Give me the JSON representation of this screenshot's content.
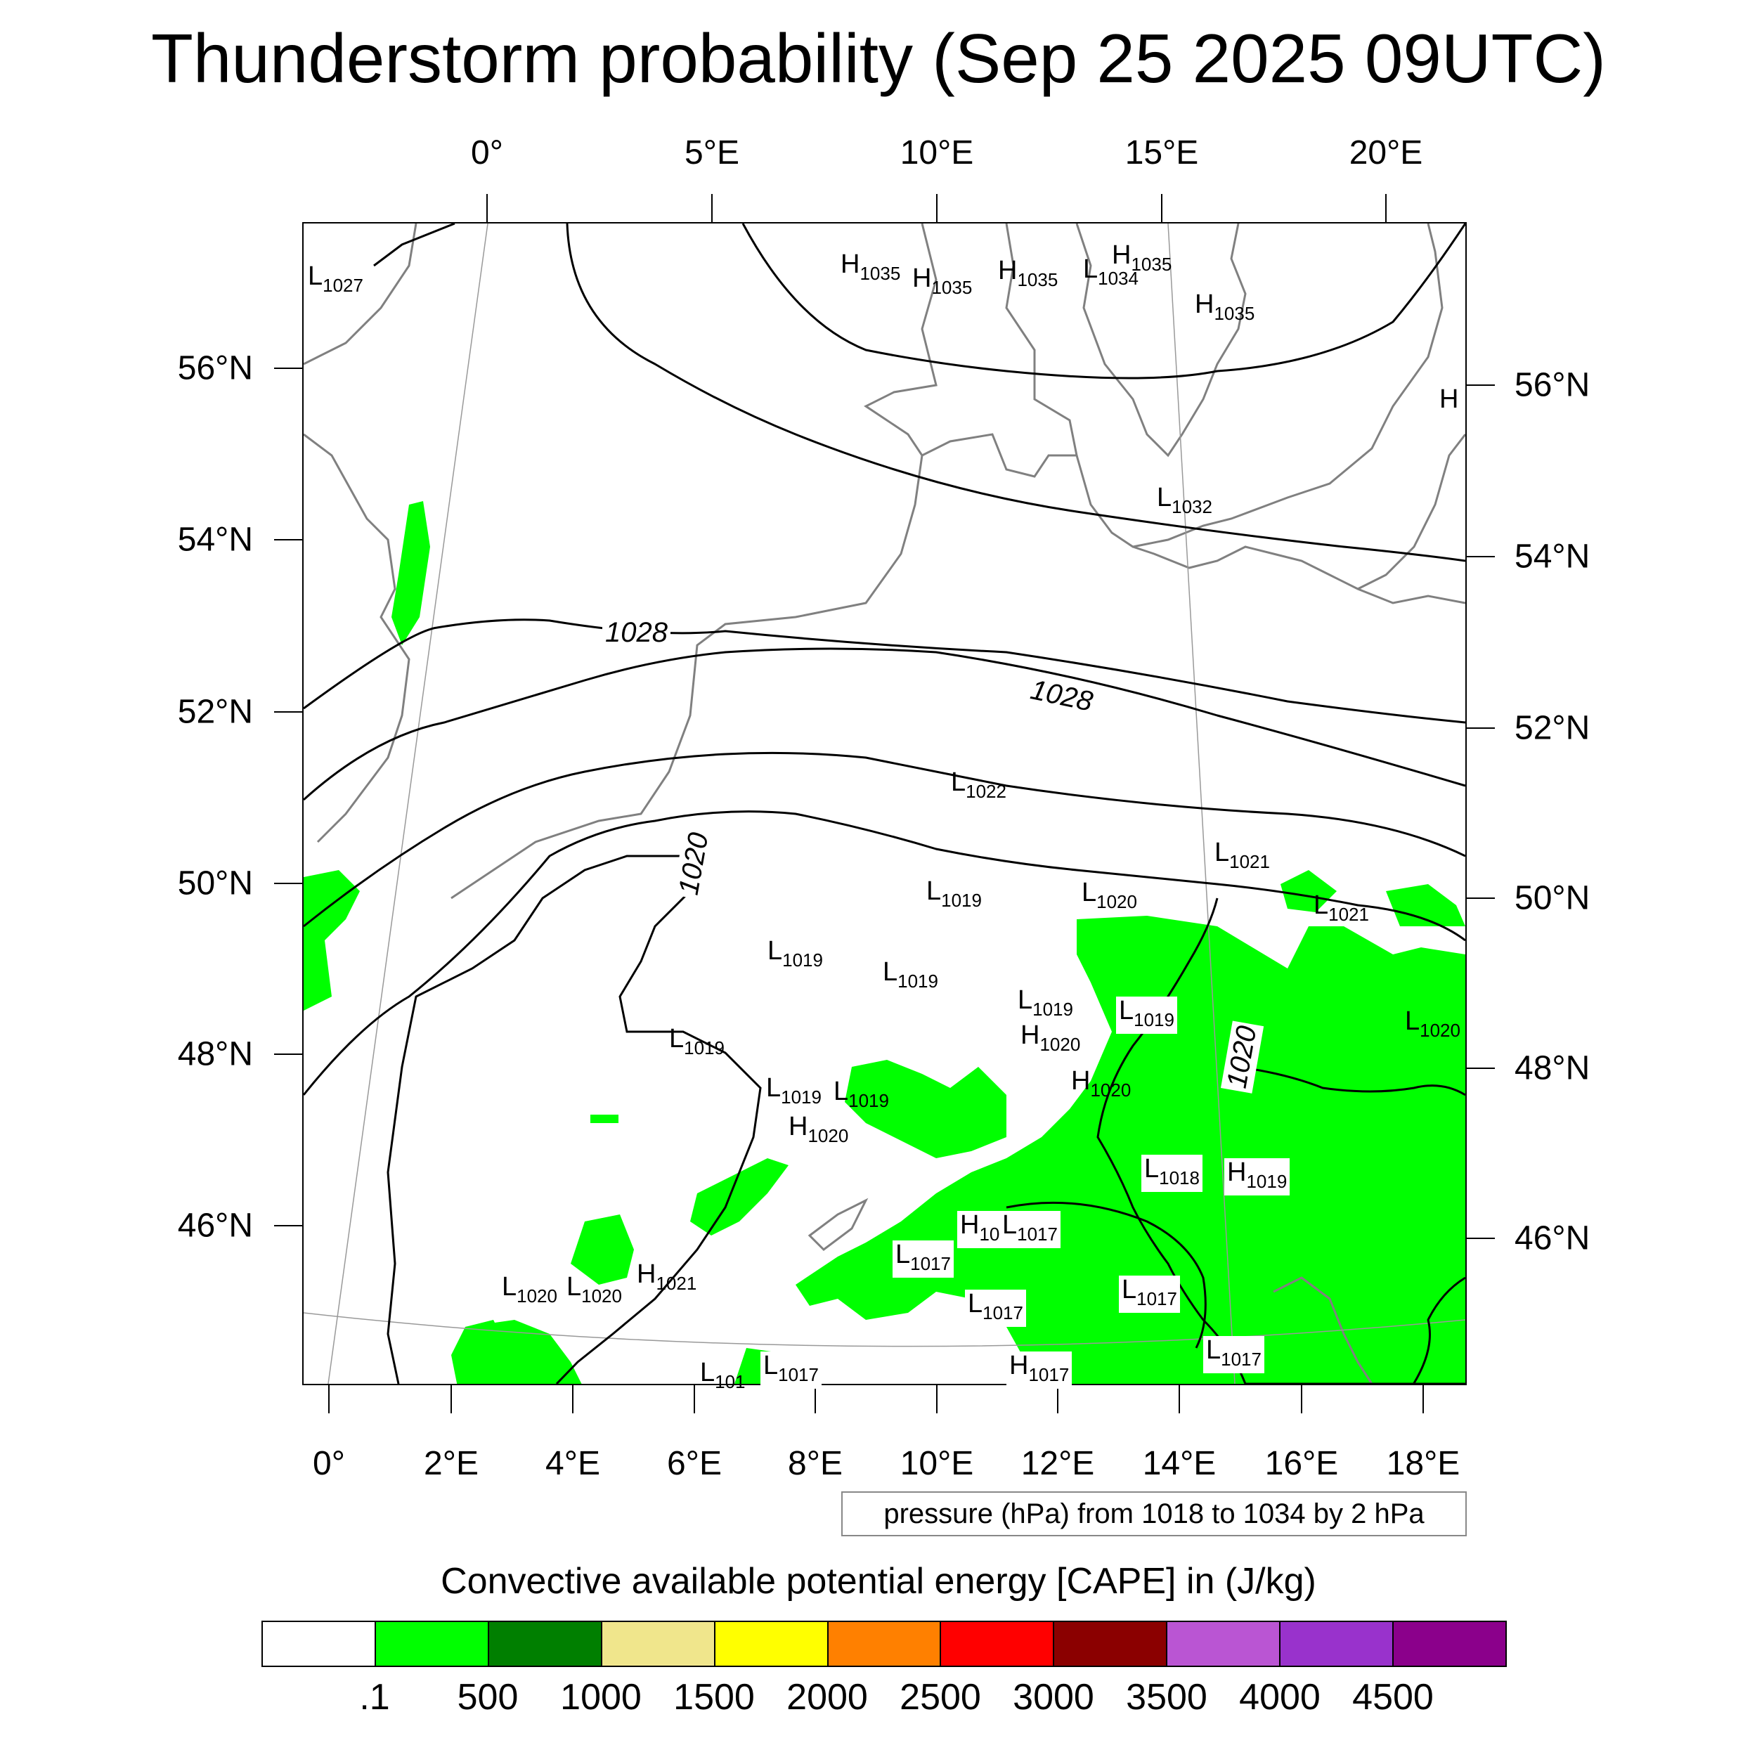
{
  "title": "Thunderstorm probability (Sep 25 2025 09UTC)",
  "axes": {
    "top_lon_ticks": [
      "0°",
      "5°E",
      "10°E",
      "15°E",
      "20°E"
    ],
    "bottom_lon_ticks": [
      "0°",
      "2°E",
      "4°E",
      "6°E",
      "8°E",
      "10°E",
      "12°E",
      "14°E",
      "16°E",
      "18°E"
    ],
    "left_lat_ticks": [
      "56°N",
      "54°N",
      "52°N",
      "50°N",
      "48°N",
      "46°N"
    ],
    "right_lat_ticks": [
      "56°N",
      "54°N",
      "52°N",
      "50°N",
      "48°N",
      "46°N"
    ]
  },
  "pressure_note": "pressure (hPa) from 1018 to 1034 by 2 hPa",
  "contour_labels": [
    "1028",
    "1028",
    "1020",
    "1020"
  ],
  "pressure_centers": [
    {
      "type": "L",
      "value": "1027"
    },
    {
      "type": "H",
      "value": "1035"
    },
    {
      "type": "H",
      "value": "1035"
    },
    {
      "type": "H",
      "value": "1035"
    },
    {
      "type": "L",
      "value": "1034"
    },
    {
      "type": "H",
      "value": "1035"
    },
    {
      "type": "H",
      "value": "1035"
    },
    {
      "type": "H",
      "value": ""
    },
    {
      "type": "L",
      "value": "1032"
    },
    {
      "type": "L",
      "value": "1022"
    },
    {
      "type": "L",
      "value": "1021"
    },
    {
      "type": "L",
      "value": "1021"
    },
    {
      "type": "L",
      "value": "1019"
    },
    {
      "type": "L",
      "value": "1020"
    },
    {
      "type": "L",
      "value": "1019"
    },
    {
      "type": "L",
      "value": "1019"
    },
    {
      "type": "L",
      "value": "1019"
    },
    {
      "type": "H",
      "value": "1020"
    },
    {
      "type": "L",
      "value": "1019"
    },
    {
      "type": "L",
      "value": "1020"
    },
    {
      "type": "L",
      "value": "1019"
    },
    {
      "type": "H",
      "value": "1020"
    },
    {
      "type": "L",
      "value": "1019"
    },
    {
      "type": "L",
      "value": "1019"
    },
    {
      "type": "H",
      "value": "1020"
    },
    {
      "type": "L",
      "value": "1018"
    },
    {
      "type": "H",
      "value": "1019"
    },
    {
      "type": "H",
      "value": "10"
    },
    {
      "type": "L",
      "value": "1017"
    },
    {
      "type": "L",
      "value": "1017"
    },
    {
      "type": "L",
      "value": "1020"
    },
    {
      "type": "L",
      "value": "1020"
    },
    {
      "type": "H",
      "value": "1021"
    },
    {
      "type": "L",
      "value": "1017"
    },
    {
      "type": "L",
      "value": "1017"
    },
    {
      "type": "L",
      "value": "1017"
    },
    {
      "type": "H",
      "value": "1017"
    },
    {
      "type": "L",
      "value": "1017"
    },
    {
      "type": "L",
      "value": "101"
    }
  ],
  "colorbar": {
    "title": "Convective available potential energy [CAPE] in (J/kg)",
    "colors": [
      "#ffffff",
      "#00ff00",
      "#007f00",
      "#f0e68c",
      "#ffff00",
      "#ff8000",
      "#ff0000",
      "#8b0000",
      "#ba55d3",
      "#9932cc",
      "#8b008b"
    ],
    "labels": [
      ".1",
      "500",
      "1000",
      "1500",
      "2000",
      "2500",
      "3000",
      "3500",
      "4000",
      "4500"
    ]
  },
  "colors": {
    "cape_low": "#00ff00",
    "coastline": "#808080",
    "isobar": "#000000"
  }
}
